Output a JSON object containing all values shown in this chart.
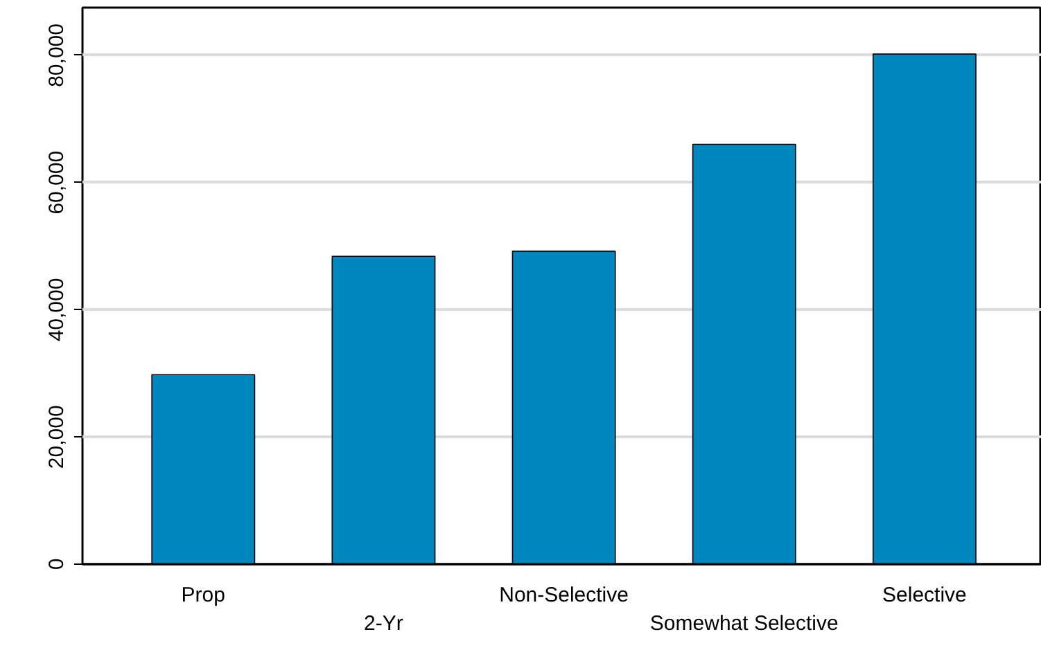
{
  "chart_data": {
    "type": "bar",
    "categories": [
      "Prop",
      "2-Yr",
      "Non-Selective",
      "Somewhat Selective",
      "Selective"
    ],
    "values": [
      29800,
      48400,
      49200,
      66000,
      80200
    ],
    "color": "#0087be",
    "ylim": [
      0,
      87500
    ],
    "yticks": [
      {
        "value": 0,
        "label": "0"
      },
      {
        "value": 20000,
        "label": "20,000"
      },
      {
        "value": 40000,
        "label": "40,000"
      },
      {
        "value": 60000,
        "label": "60,000"
      },
      {
        "value": 80000,
        "label": "80,000"
      }
    ],
    "grid": "y"
  }
}
